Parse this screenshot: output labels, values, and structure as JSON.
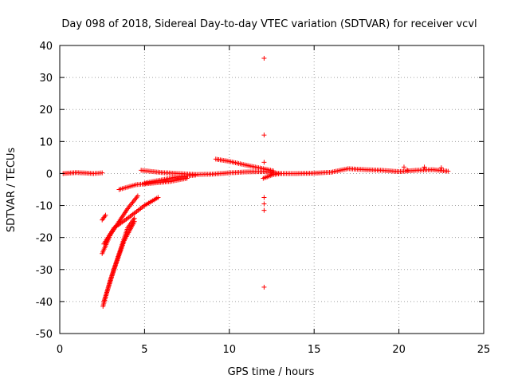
{
  "chart_data": {
    "type": "scatter",
    "title": "Day 098 of 2018, Sidereal Day-to-day VTEC variation (SDTVAR) for receiver vcvl",
    "xlabel": "GPS time / hours",
    "ylabel": "SDTVAR / TECUs",
    "xlim": [
      0,
      25
    ],
    "ylim": [
      -50,
      40
    ],
    "xticks": [
      0,
      5,
      10,
      15,
      20,
      25
    ],
    "yticks": [
      -50,
      -40,
      -30,
      -20,
      -10,
      0,
      10,
      20,
      30,
      40
    ],
    "grid": true,
    "marker": "+",
    "color": "#ff0000",
    "tracks": [
      [
        [
          0.2,
          0.0
        ],
        [
          1.0,
          0.3
        ],
        [
          2.0,
          0.0
        ],
        [
          2.5,
          0.2
        ]
      ],
      [
        [
          2.55,
          -41.5
        ],
        [
          3.0,
          -33.0
        ],
        [
          3.5,
          -25.0
        ],
        [
          4.0,
          -17.0
        ],
        [
          4.4,
          -14.0
        ]
      ],
      [
        [
          2.6,
          -40.0
        ],
        [
          3.2,
          -30.0
        ],
        [
          3.8,
          -21.0
        ],
        [
          4.4,
          -15.0
        ]
      ],
      [
        [
          2.5,
          -25.0
        ],
        [
          3.0,
          -19.0
        ],
        [
          3.5,
          -15.0
        ],
        [
          4.0,
          -11.0
        ],
        [
          4.6,
          -7.0
        ]
      ],
      [
        [
          2.6,
          -22.0
        ],
        [
          3.2,
          -17.0
        ],
        [
          4.0,
          -14.0
        ],
        [
          5.0,
          -10.0
        ],
        [
          5.8,
          -7.5
        ]
      ],
      [
        [
          2.5,
          -14.5
        ],
        [
          2.7,
          -13.0
        ]
      ],
      [
        [
          3.5,
          -5.0
        ],
        [
          4.5,
          -3.5
        ],
        [
          5.5,
          -3.0
        ],
        [
          6.5,
          -2.5
        ],
        [
          7.5,
          -1.5
        ]
      ],
      [
        [
          5.0,
          -3.0
        ],
        [
          6.0,
          -2.0
        ],
        [
          7.0,
          -1.0
        ],
        [
          8.0,
          -0.5
        ]
      ],
      [
        [
          4.8,
          1.0
        ],
        [
          6.0,
          0.3
        ],
        [
          7.0,
          0.0
        ],
        [
          8.0,
          -0.3
        ],
        [
          9.0,
          -0.2
        ],
        [
          10.0,
          0.2
        ],
        [
          11.0,
          0.5
        ],
        [
          12.0,
          0.6
        ],
        [
          13.0,
          0.0
        ],
        [
          14.0,
          0.0
        ],
        [
          15.0,
          0.1
        ],
        [
          16.0,
          0.4
        ],
        [
          17.0,
          1.5
        ],
        [
          18.0,
          1.2
        ],
        [
          19.0,
          1.0
        ],
        [
          20.0,
          0.6
        ],
        [
          21.0,
          1.0
        ],
        [
          22.0,
          1.2
        ],
        [
          22.9,
          0.7
        ]
      ],
      [
        [
          9.2,
          4.5
        ],
        [
          10.0,
          3.8
        ],
        [
          11.0,
          2.6
        ],
        [
          12.0,
          1.5
        ],
        [
          12.6,
          0.8
        ]
      ],
      [
        [
          12.0,
          -1.5
        ],
        [
          12.5,
          -0.5
        ],
        [
          13.0,
          0.0
        ]
      ]
    ],
    "points": [
      [
        12.05,
        36.0
      ],
      [
        12.05,
        12.0
      ],
      [
        12.05,
        3.5
      ],
      [
        12.05,
        -7.5
      ],
      [
        12.05,
        -9.5
      ],
      [
        12.05,
        -11.5
      ],
      [
        12.05,
        -35.5
      ],
      [
        20.3,
        2.0
      ],
      [
        20.5,
        1.0
      ],
      [
        21.5,
        2.0
      ],
      [
        22.5,
        1.8
      ]
    ]
  }
}
